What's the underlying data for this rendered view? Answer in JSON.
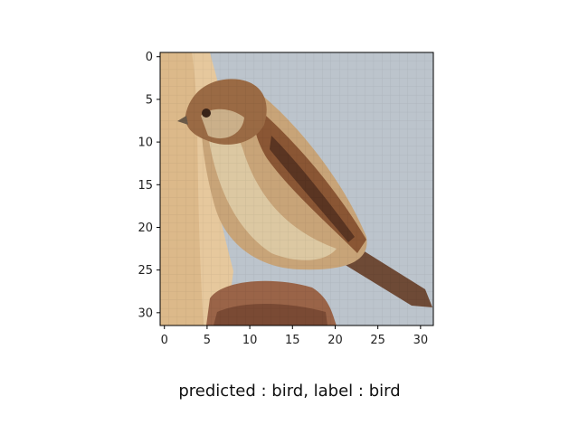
{
  "figure": {
    "caption": "predicted : bird, label : bird",
    "image_subject": "pixelated photo of a small brown bird (sparrow) perched, facing left, pale blue-gray sky background",
    "pixel_grid": 32
  },
  "axes": {
    "x_ticks": [
      0,
      5,
      10,
      15,
      20,
      25,
      30
    ],
    "y_ticks": [
      0,
      5,
      10,
      15,
      20,
      25,
      30
    ],
    "xlim": [
      -0.5,
      31.5
    ],
    "ylim": [
      31.5,
      -0.5
    ]
  },
  "colors": {
    "sky": "#bcc4cc",
    "wall_light": "#e9cfa7",
    "wall_dark": "#d8b68a",
    "bird_dark": "#7a4a2a",
    "bird_mid": "#a8704a",
    "bird_light": "#d9c39c",
    "perch": "#9a6448"
  }
}
